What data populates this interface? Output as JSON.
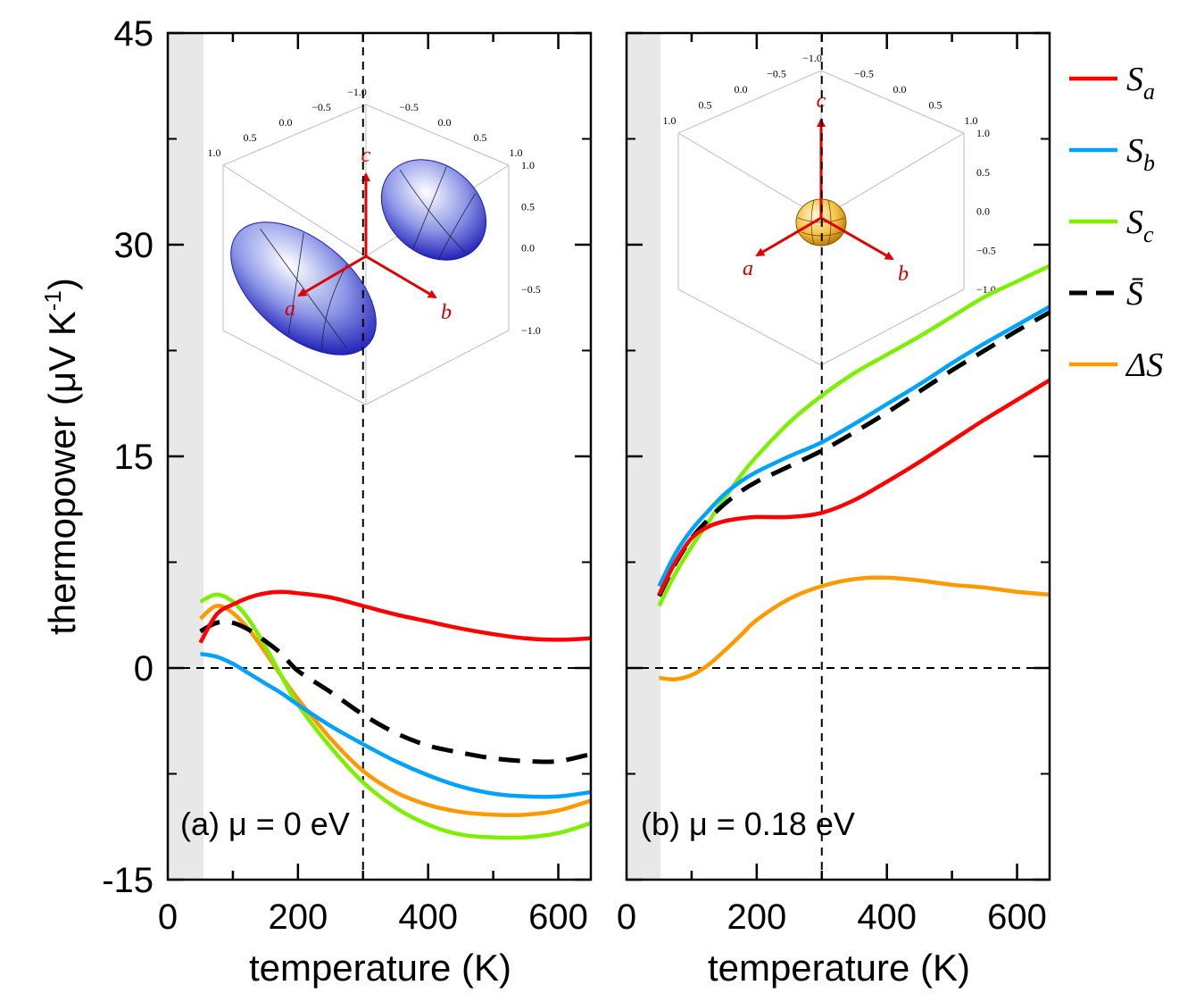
{
  "chart_data": {
    "type": "line",
    "ylabel": "thermopower (μV K",
    "ylabel_sup": "-1",
    "ylabel_close": ")",
    "xlabel": "temperature (K)",
    "ylim": [
      -15,
      45
    ],
    "xlim": [
      0,
      650
    ],
    "yticks": [
      -15,
      0,
      15,
      30,
      45
    ],
    "ytick_labels": [
      "-15",
      "0",
      "15",
      "30",
      "45"
    ],
    "xticks": [
      0,
      200,
      400,
      600
    ],
    "xtick_labels": [
      "0",
      "200",
      "400",
      "600"
    ],
    "vline_x": 300,
    "hline_y": 0,
    "shaded_region_x": [
      0,
      50
    ],
    "legend": [
      {
        "key": "Sa",
        "symbol": "S",
        "sub": "a",
        "color": "#ff0000",
        "dashed": false
      },
      {
        "key": "Sb",
        "symbol": "S",
        "sub": "b",
        "color": "#00a2ff",
        "dashed": false
      },
      {
        "key": "Sc",
        "symbol": "S",
        "sub": "c",
        "color": "#7cf000",
        "dashed": false
      },
      {
        "key": "Sbar",
        "symbol": "S̄",
        "sub": "",
        "color": "#000000",
        "dashed": true
      },
      {
        "key": "dS",
        "symbol": "ΔS",
        "sub": "",
        "color": "#ff9900",
        "dashed": false
      }
    ],
    "panels": [
      {
        "label": "(a) μ = 0 eV",
        "x": [
          50,
          75,
          100,
          125,
          150,
          175,
          200,
          250,
          300,
          350,
          400,
          450,
          500,
          550,
          600,
          650
        ],
        "series": [
          {
            "key": "Sa",
            "values": [
              1.8,
              3.8,
              4.5,
              5.0,
              5.3,
              5.4,
              5.3,
              5.0,
              4.4,
              3.8,
              3.3,
              2.8,
              2.4,
              2.1,
              2.0,
              2.1
            ]
          },
          {
            "key": "Sb",
            "values": [
              1.0,
              0.8,
              0.3,
              -0.4,
              -1.1,
              -1.8,
              -2.6,
              -4.1,
              -5.4,
              -6.6,
              -7.6,
              -8.4,
              -8.9,
              -9.1,
              -9.1,
              -8.8
            ]
          },
          {
            "key": "Sc",
            "values": [
              4.7,
              5.2,
              4.7,
              3.4,
              1.5,
              -0.6,
              -2.6,
              -5.6,
              -8.1,
              -9.9,
              -11.1,
              -11.8,
              -12.0,
              -12.0,
              -11.7,
              -11.0
            ]
          },
          {
            "key": "Sbar",
            "values": [
              2.6,
              3.2,
              3.2,
              2.7,
              1.9,
              1.0,
              -0.2,
              -1.7,
              -3.3,
              -4.6,
              -5.5,
              -6.0,
              -6.4,
              -6.6,
              -6.6,
              -6.1
            ]
          },
          {
            "key": "dS",
            "values": [
              3.5,
              4.4,
              3.9,
              2.7,
              1.1,
              -0.6,
              -2.2,
              -5.0,
              -7.3,
              -8.8,
              -9.7,
              -10.2,
              -10.4,
              -10.4,
              -10.1,
              -9.4
            ]
          }
        ]
      },
      {
        "label": "(b) μ = 0.18 eV",
        "x": [
          50,
          75,
          100,
          125,
          150,
          175,
          200,
          250,
          300,
          350,
          400,
          450,
          500,
          550,
          600,
          650
        ],
        "series": [
          {
            "key": "Sa",
            "values": [
              5.2,
              7.5,
              9.2,
              10.0,
              10.4,
              10.6,
              10.7,
              10.7,
              11.0,
              11.9,
              13.2,
              14.6,
              16.1,
              17.6,
              19.0,
              20.4
            ]
          },
          {
            "key": "Sb",
            "values": [
              5.8,
              8.1,
              9.8,
              11.1,
              12.3,
              13.2,
              13.9,
              15.0,
              16.0,
              17.3,
              18.7,
              20.1,
              21.6,
              23.0,
              24.3,
              25.6
            ]
          },
          {
            "key": "Sc",
            "values": [
              4.4,
              6.7,
              8.6,
              10.3,
              12.0,
              13.6,
              15.0,
              17.4,
              19.3,
              20.9,
              22.2,
              23.5,
              24.9,
              26.3,
              27.4,
              28.5
            ]
          },
          {
            "key": "Sbar",
            "values": [
              5.1,
              7.4,
              9.2,
              10.5,
              11.6,
              12.5,
              13.2,
              14.3,
              15.4,
              16.7,
              18.1,
              19.6,
              21.1,
              22.5,
              23.9,
              25.2
            ]
          },
          {
            "key": "dS",
            "values": [
              -0.7,
              -0.8,
              -0.5,
              0.2,
              1.2,
              2.3,
              3.4,
              4.9,
              5.8,
              6.3,
              6.4,
              6.2,
              5.9,
              5.7,
              5.4,
              5.2
            ]
          }
        ]
      }
    ],
    "insets": [
      {
        "panel": 0,
        "axis_labels": [
          "a",
          "b",
          "c"
        ],
        "tick_labels_top_left": [
          "1.0",
          "0.5",
          "0.0",
          "−0.5",
          "−1.0"
        ],
        "tick_labels_top_right": [
          "−0.5",
          "0.0",
          "0.5",
          "1.0"
        ],
        "tick_labels_right": [
          "1.0",
          "0.5",
          "0.0",
          "−0.5",
          "−1.0"
        ]
      },
      {
        "panel": 1,
        "axis_labels": [
          "a",
          "b",
          "c"
        ],
        "tick_labels_top_left": [
          "1.0",
          "0.5",
          "0.0",
          "−0.5",
          "−1.0"
        ],
        "tick_labels_top_right": [
          "−0.5",
          "0.0",
          "0.5",
          "1.0"
        ],
        "tick_labels_right": [
          "1.0",
          "0.5",
          "0.0",
          "−0.5",
          "−1.0"
        ]
      }
    ]
  }
}
